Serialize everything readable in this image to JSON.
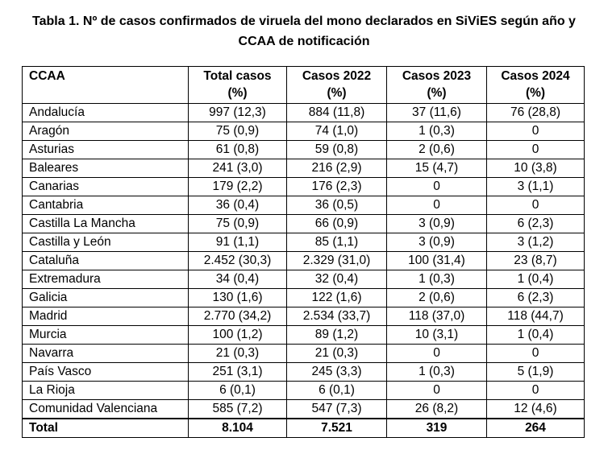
{
  "caption": {
    "line1": "Tabla 1. Nº de casos confirmados de viruela del mono declarados en SiViES según año y",
    "line2": "CCAA de notificación"
  },
  "table": {
    "headers": [
      {
        "line1": "CCAA",
        "line2": ""
      },
      {
        "line1": "Total casos",
        "line2": "(%)"
      },
      {
        "line1": "Casos 2022",
        "line2": "(%)"
      },
      {
        "line1": "Casos 2023",
        "line2": "(%)"
      },
      {
        "line1": "Casos 2024",
        "line2": "(%)"
      }
    ],
    "rows": [
      [
        "Andalucía",
        "997 (12,3)",
        "884 (11,8)",
        "37 (11,6)",
        "76 (28,8)"
      ],
      [
        "Aragón",
        "75 (0,9)",
        "74 (1,0)",
        "1 (0,3)",
        "0"
      ],
      [
        "Asturias",
        "61 (0,8)",
        "59 (0,8)",
        "2 (0,6)",
        "0"
      ],
      [
        "Baleares",
        "241 (3,0)",
        "216 (2,9)",
        "15 (4,7)",
        "10 (3,8)"
      ],
      [
        "Canarias",
        "179 (2,2)",
        "176 (2,3)",
        "0",
        "3 (1,1)"
      ],
      [
        "Cantabria",
        "36 (0,4)",
        "36 (0,5)",
        "0",
        "0"
      ],
      [
        "Castilla La Mancha",
        "75 (0,9)",
        "66 (0,9)",
        "3 (0,9)",
        "6 (2,3)"
      ],
      [
        "Castilla y León",
        "91 (1,1)",
        "85 (1,1)",
        "3 (0,9)",
        "3 (1,2)"
      ],
      [
        "Cataluña",
        "2.452 (30,3)",
        "2.329 (31,0)",
        "100 (31,4)",
        "23 (8,7)"
      ],
      [
        "Extremadura",
        "34 (0,4)",
        "32 (0,4)",
        "1 (0,3)",
        "1 (0,4)"
      ],
      [
        "Galicia",
        "130 (1,6)",
        "122 (1,6)",
        "2 (0,6)",
        "6 (2,3)"
      ],
      [
        "Madrid",
        "2.770 (34,2)",
        "2.534 (33,7)",
        "118 (37,0)",
        "118 (44,7)"
      ],
      [
        "Murcia",
        "100 (1,2)",
        "89 (1,2)",
        "10 (3,1)",
        "1 (0,4)"
      ],
      [
        "Navarra",
        "21 (0,3)",
        "21 (0,3)",
        "0",
        "0"
      ],
      [
        "País Vasco",
        "251 (3,1)",
        "245 (3,3)",
        "1 (0,3)",
        "5 (1,9)"
      ],
      [
        "La Rioja",
        "6 (0,1)",
        "6 (0,1)",
        "0",
        "0"
      ],
      [
        "Comunidad Valenciana",
        "585 (7,2)",
        "547 (7,3)",
        "26 (8,2)",
        "12 (4,6)"
      ]
    ],
    "total": [
      "Total",
      "8.104",
      "7.521",
      "319",
      "264"
    ]
  }
}
